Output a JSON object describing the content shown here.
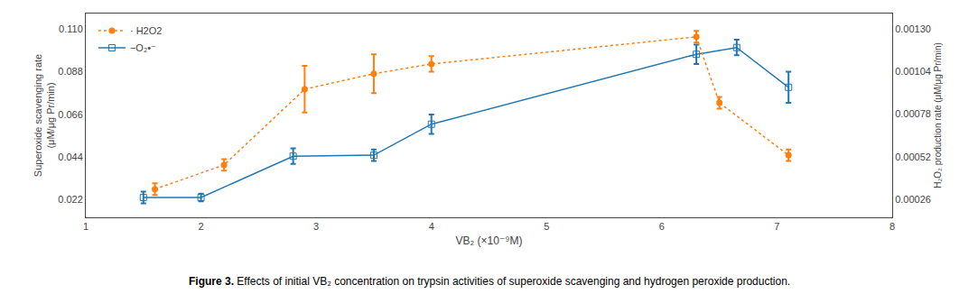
{
  "chart_data": {
    "type": "line",
    "xlabel": "VB₂ (×10⁻⁹M)",
    "ylabel": "Superoxide scavenging rate\n(μM/μg Pr/min)",
    "y2label": "H₂O₂ production rate (μM/μg Pr/min)",
    "xlim": [
      1,
      8
    ],
    "xticks": [
      1,
      2,
      3,
      4,
      5,
      6,
      7,
      8
    ],
    "ylim": [
      0.013,
      0.118
    ],
    "yticks": [
      0.022,
      0.044,
      0.066,
      0.088,
      {
        "value": 0.11,
        "label": "0.110"
      }
    ],
    "y2lim": [
      0.000153,
      0.001392
    ],
    "y2ticks": [
      0.00026,
      0.00052,
      0.00078,
      0.00104,
      {
        "value": 0.0013,
        "label": "0.00130"
      }
    ],
    "grid": false,
    "legend": "upper left",
    "series": [
      {
        "name": "−O₂•⁻",
        "marker": "square-open",
        "line_style": "solid",
        "x": [
          1.5,
          2.0,
          2.8,
          3.5,
          4.0,
          6.3,
          6.65,
          7.1
        ],
        "values": [
          0.0232,
          0.0232,
          0.0445,
          0.045,
          0.061,
          0.097,
          0.1005,
          0.08
        ],
        "yerr": [
          0.003,
          0.002,
          0.004,
          0.003,
          0.005,
          0.005,
          0.004,
          0.008
        ]
      },
      {
        "name": "· H2O2",
        "marker": "circle",
        "line_style": "dotted",
        "x": [
          1.6,
          2.2,
          2.9,
          3.5,
          4.0,
          6.3,
          6.5,
          7.1
        ],
        "values": [
          0.0275,
          0.04,
          0.079,
          0.087,
          0.092,
          0.106,
          0.072,
          0.045
        ],
        "yerr": [
          0.003,
          0.003,
          0.012,
          0.01,
          0.004,
          0.003,
          0.003,
          0.003
        ]
      }
    ],
    "annotations": [
      "Figure 3.",
      " Effects of initial VB₂ concentration on trypsin activities of superoxide scavenging and hydrogen peroxide production."
    ]
  }
}
